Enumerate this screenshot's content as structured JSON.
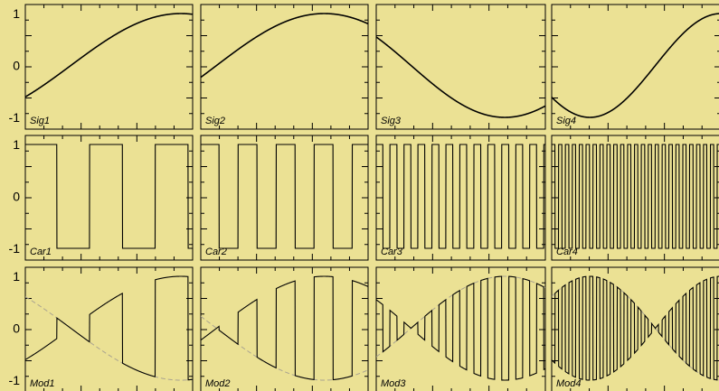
{
  "chart_data": {
    "type": "line",
    "background": "#ebe194",
    "line_color": "#000000",
    "envelope_color": "#a9a390",
    "ylim": [
      -1,
      1
    ],
    "yticks": [
      1,
      0,
      -1
    ],
    "ytick_labels": [
      "1",
      "0",
      "-1"
    ],
    "rows": [
      {
        "kind": "signal",
        "panels": [
          {
            "label": "Sig1",
            "phase_start": -0.65,
            "phase_end": 1.74
          },
          {
            "label": "Sig2",
            "phase_start": -0.23,
            "phase_end": 2.21
          },
          {
            "label": "Sig3",
            "phase_start": 2.56,
            "phase_end": 5.39
          },
          {
            "label": "Sig4",
            "phase_start": 3.8,
            "phase_end": 7.85
          }
        ]
      },
      {
        "kind": "carrier",
        "panels": [
          {
            "label": "Car1",
            "cycles": 2.55
          },
          {
            "label": "Car2",
            "cycles": 4.4
          },
          {
            "label": "Car3",
            "cycles": 12.1
          },
          {
            "label": "Car4",
            "cycles": 24.5
          }
        ]
      },
      {
        "kind": "modulated",
        "panels": [
          {
            "label": "Mod1",
            "cycles": 2.55
          },
          {
            "label": "Mod2",
            "cycles": 4.4
          },
          {
            "label": "Mod3",
            "cycles": 12.1
          },
          {
            "label": "Mod4",
            "cycles": 24.5
          }
        ]
      }
    ]
  }
}
